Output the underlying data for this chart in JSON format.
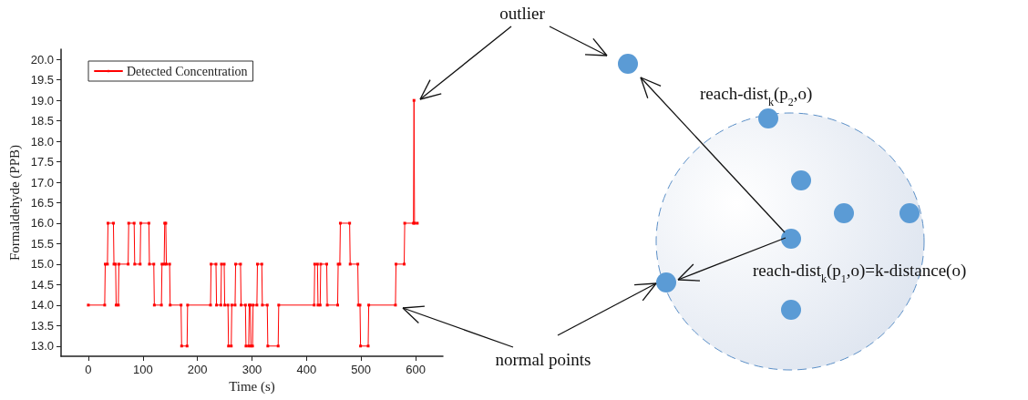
{
  "chart_data": {
    "type": "line",
    "xlabel": "Time (s)",
    "ylabel": "Formaldehyde (PPB)",
    "xlim": [
      -50,
      650
    ],
    "xticks": [
      0,
      100,
      200,
      300,
      400,
      500,
      600
    ],
    "ylim": [
      12.75,
      20.25
    ],
    "yticks": [
      {
        "value": 13,
        "label": "13.0"
      },
      {
        "value": 13.5,
        "label": "13.5"
      },
      {
        "value": 14,
        "label": "14.0"
      },
      {
        "value": 14.5,
        "label": "14.5"
      },
      {
        "value": 15,
        "label": "15.0"
      },
      {
        "value": 15.5,
        "label": "15.5"
      },
      {
        "value": 16,
        "label": "16.0"
      },
      {
        "value": 16.5,
        "label": "16.5"
      },
      {
        "value": 17,
        "label": "17.0"
      },
      {
        "value": 17.5,
        "label": "17.5"
      },
      {
        "value": 18,
        "label": "18.0"
      },
      {
        "value": 18.5,
        "label": "18.5"
      },
      {
        "value": 19,
        "label": "19.0"
      },
      {
        "value": 19.5,
        "label": "19.5"
      },
      {
        "value": 20,
        "label": "20.0"
      }
    ],
    "series": [
      {
        "name": "Detected Concentration",
        "color": "#ff0000",
        "x": [
          0,
          30,
          31,
          35,
          36,
          46,
          47,
          50,
          51,
          55,
          56,
          73,
          74,
          84,
          85,
          95,
          96,
          111,
          112,
          120,
          121,
          134,
          135,
          139,
          140,
          142,
          143,
          149,
          150,
          170,
          171,
          181,
          182,
          224,
          225,
          234,
          235,
          243,
          244,
          249,
          250,
          256,
          257,
          262,
          263,
          269,
          270,
          279,
          280,
          288,
          289,
          294,
          295,
          297,
          298,
          301,
          302,
          309,
          310,
          318,
          319,
          328,
          329,
          348,
          349,
          414,
          415,
          420,
          421,
          425,
          426,
          437,
          438,
          457,
          458,
          461,
          462,
          479,
          480,
          494,
          495,
          498,
          499,
          513,
          514,
          563,
          564,
          579,
          580,
          596,
          597,
          598,
          603
        ],
        "values": [
          14,
          14,
          15,
          15,
          16,
          16,
          15,
          15,
          14,
          14,
          15,
          15,
          16,
          16,
          15,
          15,
          16,
          16,
          15,
          15,
          14,
          14,
          15,
          15,
          16,
          16,
          15,
          15,
          14,
          14,
          13,
          13,
          14,
          14,
          15,
          15,
          14,
          14,
          15,
          15,
          14,
          14,
          13,
          13,
          14,
          14,
          15,
          15,
          14,
          14,
          13,
          13,
          14,
          14,
          13,
          13,
          14,
          14,
          15,
          15,
          14,
          14,
          13,
          13,
          14,
          14,
          15,
          15,
          14,
          14,
          15,
          15,
          14,
          14,
          15,
          15,
          16,
          16,
          15,
          15,
          14,
          14,
          13,
          13,
          14,
          14,
          15,
          15,
          16,
          16,
          19,
          16,
          16
        ]
      }
    ],
    "marker": "square",
    "line_style": "solid",
    "grid": false,
    "legend": "top left",
    "annotations": [
      "outlier",
      "reach-dist$_{k}$(p$_{2}$,o)",
      "reach-dist$_{k}$(p$_{1}$,o)=k-distance(o)",
      "normal points"
    ]
  }
}
